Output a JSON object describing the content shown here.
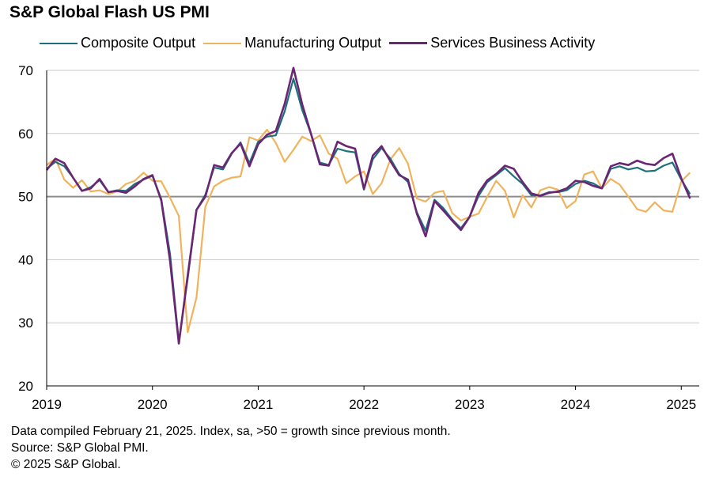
{
  "chart_data": {
    "type": "line",
    "title": "S&P Global Flash US PMI",
    "xlabel": "",
    "ylabel": "",
    "ylim": [
      20,
      70
    ],
    "yticks": [
      20,
      30,
      40,
      50,
      60,
      70
    ],
    "xlim": [
      2019.0,
      2025.17
    ],
    "xticks": [
      2019,
      2020,
      2021,
      2022,
      2023,
      2024,
      2025
    ],
    "xtick_labels": [
      "2019",
      "2020",
      "2021",
      "2022",
      "2023",
      "2024",
      "2025"
    ],
    "reference_line": 50,
    "grid": "horizontal",
    "legend_position": "top",
    "series": [
      {
        "name": "Composite Output",
        "color": "#1d6f7b",
        "values": [
          54.4,
          55.5,
          54.8,
          53.0,
          50.9,
          51.5,
          52.6,
          50.7,
          51.0,
          50.9,
          52.0,
          52.7,
          53.3,
          49.6,
          40.9,
          27.0,
          37.0,
          47.9,
          50.3,
          54.6,
          54.3,
          56.8,
          58.6,
          55.3,
          58.7,
          59.5,
          59.7,
          63.5,
          68.7,
          63.7,
          59.9,
          55.4,
          55.0,
          57.6,
          57.2,
          57.0,
          51.1,
          55.9,
          57.7,
          56.0,
          53.6,
          52.3,
          47.5,
          44.6,
          49.5,
          48.2,
          46.4,
          45.0,
          46.8,
          50.1,
          52.3,
          53.4,
          54.5,
          53.2,
          52.0,
          50.2,
          50.2,
          50.7,
          50.7,
          51.0,
          52.0,
          52.5,
          52.1,
          51.3,
          54.4,
          54.8,
          54.3,
          54.6,
          54.0,
          54.1,
          54.9,
          55.4,
          52.7,
          50.4
        ]
      },
      {
        "name": "Manufacturing Output",
        "color": "#f0b35d",
        "values": [
          55.0,
          56.0,
          52.7,
          51.4,
          52.6,
          50.8,
          51.0,
          50.4,
          50.8,
          52.0,
          52.5,
          53.8,
          52.5,
          52.4,
          49.8,
          46.9,
          28.5,
          34.0,
          48.4,
          51.6,
          52.5,
          53.0,
          53.2,
          59.4,
          58.9,
          60.6,
          58.5,
          55.5,
          57.4,
          59.5,
          58.8,
          59.7,
          56.8,
          56.0,
          52.1,
          53.2,
          54.0,
          50.4,
          52.1,
          55.9,
          57.7,
          55.2,
          49.7,
          49.2,
          50.6,
          50.9,
          47.4,
          46.2,
          46.8,
          47.3,
          50.0,
          52.5,
          50.9,
          46.7,
          50.2,
          48.3,
          51.0,
          51.5,
          51.1,
          48.2,
          49.3,
          53.5,
          54.0,
          51.3,
          52.8,
          51.9,
          50.0,
          48.0,
          47.6,
          49.1,
          47.8,
          47.6,
          52.4,
          53.8
        ]
      },
      {
        "name": "Services Business Activity",
        "color": "#6a2674",
        "values": [
          54.2,
          56.0,
          55.3,
          53.0,
          50.9,
          51.3,
          52.8,
          50.7,
          50.9,
          50.6,
          51.6,
          52.8,
          53.4,
          49.4,
          39.8,
          26.7,
          37.5,
          47.9,
          50.0,
          55.0,
          54.6,
          56.9,
          58.4,
          54.8,
          58.3,
          59.8,
          60.4,
          64.7,
          70.4,
          64.6,
          59.9,
          55.1,
          54.9,
          58.7,
          58.0,
          57.6,
          51.2,
          56.5,
          58.0,
          55.6,
          53.4,
          52.7,
          47.3,
          43.7,
          49.3,
          47.8,
          46.2,
          44.7,
          46.8,
          50.6,
          52.6,
          53.6,
          54.9,
          54.4,
          52.3,
          50.5,
          50.1,
          50.6,
          50.8,
          51.3,
          52.5,
          52.3,
          51.7,
          51.3,
          54.8,
          55.3,
          55.0,
          55.7,
          55.2,
          55.0,
          56.1,
          56.8,
          52.9,
          49.7
        ]
      }
    ]
  },
  "notes": [
    "Data compiled February 21, 2025. Index, sa, >50 = growth since previous month.",
    "Source: S&P Global PMI.",
    "© 2025 S&P Global."
  ]
}
